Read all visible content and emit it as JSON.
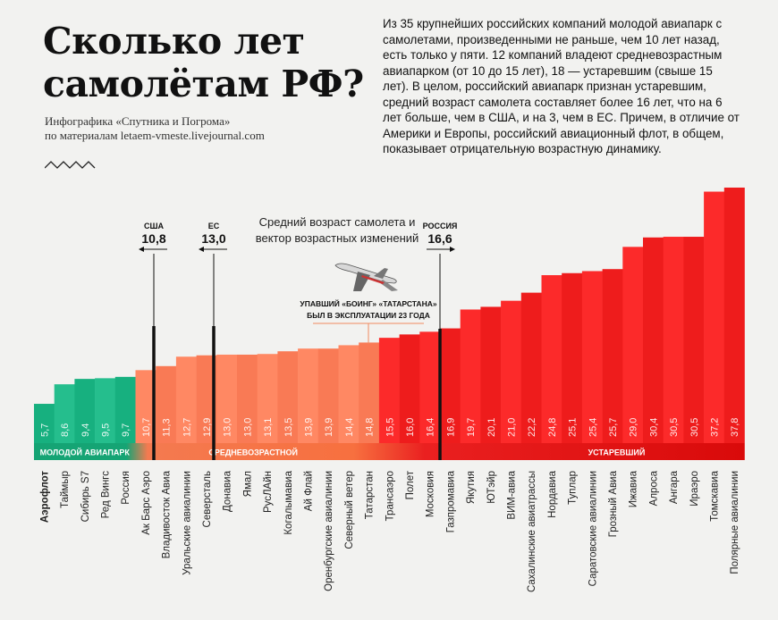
{
  "header": {
    "title": "Сколько лет самолётам РФ?",
    "subtitle_line1": "Инфографика «Спутника и Погрома»",
    "subtitle_line2": "по материалам letaem-vmeste.livejournal.com",
    "description": "Из 35 крупнейших российских компаний молодой авиапарк с самолетами, произведенными не раньше, чем 10 лет назад, есть только у пяти. 12 компаний владеют средневозрастным авиапарком (от 10 до 15 лет), 18 — устаревшим (свыше 15 лет). В целом, российский авиапарк признан устаревшим, средний возраст самолета составляет более 16 лет, что на 6 лет больше, чем в США, и на 3, чем в ЕС. Причем, в отличие от Америки и Европы, российский авиационный флот, в общем, показывает отрицательную возрастную динамику."
  },
  "chart_data": {
    "type": "bar",
    "categories": [
      "Аэрофлот",
      "Таймыр",
      "Сибирь S7",
      "Ред Вингс",
      "Россия",
      "Ак Барс Аэро",
      "Владивосток Авиа",
      "Уральские авиалинии",
      "Северсталь",
      "Донавиа",
      "Ямал",
      "РусЛАйн",
      "Когалымавиа",
      "Ай Флай",
      "Оренбургские авиалинии",
      "Северный ветер",
      "Татарстан",
      "Трансаэро",
      "Полет",
      "Московия",
      "Газпромавиа",
      "Якутия",
      "ЮТэйр",
      "ВИМ-авиа",
      "Сахалинские авиатрассы",
      "Нордавиа",
      "Туплар",
      "Саратовские авиалинии",
      "Грозный Авиа",
      "Ижавиа",
      "Алроса",
      "Ангара",
      "Ираэро",
      "Томскавиа",
      "Полярные авиалинии"
    ],
    "values": [
      5.7,
      8.6,
      9.4,
      9.5,
      9.7,
      10.7,
      11.3,
      12.7,
      12.9,
      13.0,
      13.0,
      13.1,
      13.5,
      13.9,
      13.9,
      14.4,
      14.8,
      15.5,
      16.0,
      16.4,
      16.9,
      19.7,
      20.1,
      21.0,
      22.2,
      24.8,
      25.1,
      25.4,
      25.7,
      29.0,
      30.4,
      30.5,
      30.5,
      37.2,
      37.8
    ],
    "value_labels": [
      "5,7",
      "8,6",
      "9,4",
      "9,5",
      "9,7",
      "10,7",
      "11,3",
      "12,7",
      "12,9",
      "13,0",
      "13,0",
      "13,1",
      "13,5",
      "13,9",
      "13,9",
      "14,4",
      "14,8",
      "15,5",
      "16,0",
      "16,4",
      "16,9",
      "19,7",
      "20,1",
      "21,0",
      "22,2",
      "24,8",
      "25,1",
      "25,4",
      "25,7",
      "29,0",
      "30,4",
      "30,5",
      "30,5",
      "37,2",
      "37,8"
    ],
    "chart_title": "Средний возраст самолета и вектор возрастных изменений",
    "chart_title_line1": "Средний возраст самолета",
    "chart_title_line2": "и вектор возрастных изменений",
    "groups": [
      {
        "label": "МОЛОДОЙ АВИАПАРК",
        "from": 0,
        "to": 4,
        "color": "#17b07f"
      },
      {
        "label": "СРЕДНЕВОЗРАСТНОЙ",
        "from": 5,
        "to": 16,
        "color": "#f97a55"
      },
      {
        "label": "УСТАРЕВШИЙ",
        "from": 17,
        "to": 34,
        "color": "#ee1c1c"
      }
    ],
    "references": [
      {
        "label": "США",
        "value_text": "10,8",
        "value": 10.8,
        "direction": "left"
      },
      {
        "label": "ЕС",
        "value_text": "13,0",
        "value": 13.0,
        "direction": "left"
      },
      {
        "label": "РОССИЯ",
        "value_text": "16,6",
        "value": 16.6,
        "direction": "right"
      }
    ],
    "annotation_line1": "УПАВШИЙ «БОИНГ» «ТАТАРСТАНА»",
    "annotation_line2": "БЫЛ В ЭКСПЛУАТАЦИИ 23 ГОДА",
    "colors": {
      "young": "#17b07f",
      "middle": "#f97a55",
      "old": "#ee1c1c",
      "reference_line": "#111111"
    }
  }
}
